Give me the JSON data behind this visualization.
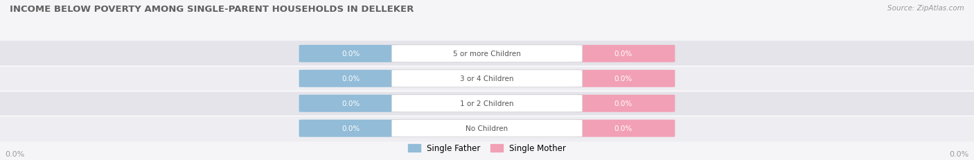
{
  "title": "INCOME BELOW POVERTY AMONG SINGLE-PARENT HOUSEHOLDS IN DELLEKER",
  "source": "Source: ZipAtlas.com",
  "categories": [
    "No Children",
    "1 or 2 Children",
    "3 or 4 Children",
    "5 or more Children"
  ],
  "father_values": [
    0.0,
    0.0,
    0.0,
    0.0
  ],
  "mother_values": [
    0.0,
    0.0,
    0.0,
    0.0
  ],
  "father_color": "#92bcd8",
  "mother_color": "#f2a0b5",
  "father_label": "Single Father",
  "mother_label": "Single Mother",
  "row_colors": [
    "#ededf2",
    "#e4e4ea"
  ],
  "title_color": "#606060",
  "category_text_color": "#555555",
  "source_color": "#999999",
  "axis_value_color": "#999999",
  "axis_label_left": "0.0%",
  "axis_label_right": "0.0%",
  "figsize": [
    14.06,
    2.32
  ],
  "dpi": 100
}
